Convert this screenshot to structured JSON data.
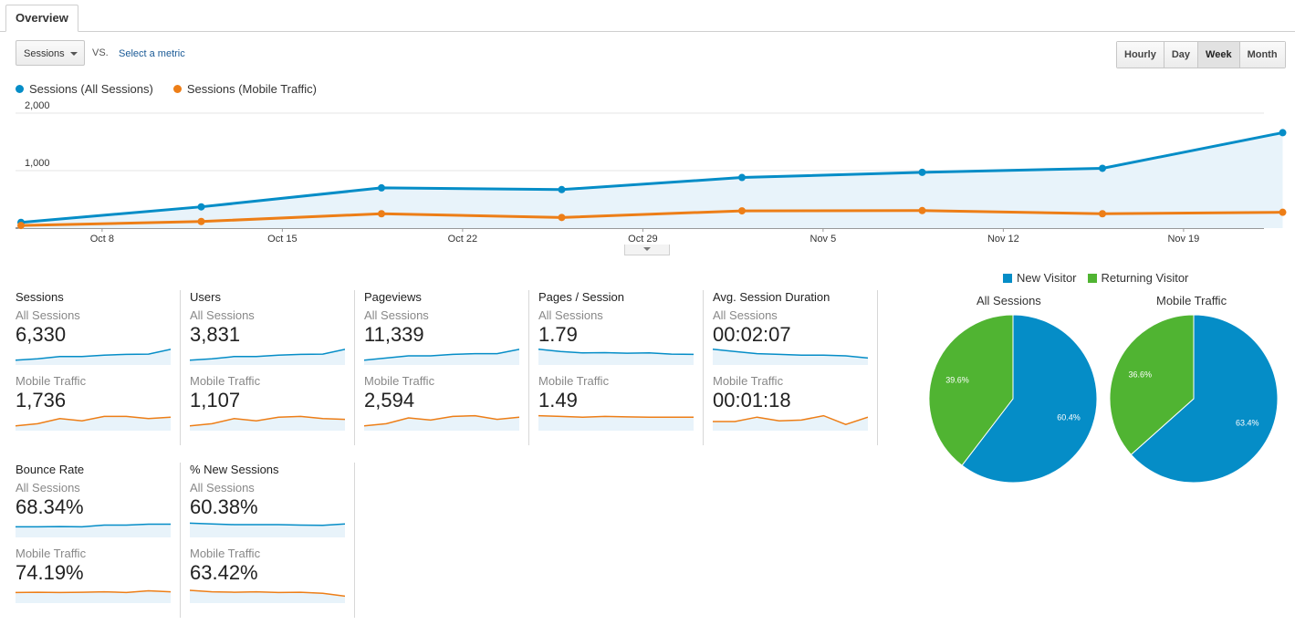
{
  "tabs": {
    "overview": "Overview"
  },
  "toolbar": {
    "metric_select": "Sessions",
    "vs": "VS.",
    "select_metric": "Select a metric",
    "granularity": [
      "Hourly",
      "Day",
      "Week",
      "Month"
    ],
    "active_granularity": "Week"
  },
  "colors": {
    "all_sessions": "#058dc7",
    "mobile_traffic": "#ed7e17",
    "new_visitor": "#058dc7",
    "returning_visitor": "#50b432"
  },
  "legend": {
    "series1": "Sessions (All Sessions)",
    "series2": "Sessions (Mobile Traffic)"
  },
  "chart_data": [
    {
      "type": "line",
      "x": [
        "Oct 4",
        "Oct 11",
        "Oct 18",
        "Oct 25",
        "Nov 1",
        "Nov 8",
        "Nov 15",
        "Nov 22"
      ],
      "x_tick_labels": [
        "Oct 8",
        "Oct 15",
        "Oct 22",
        "Oct 29",
        "Nov 5",
        "Nov 12",
        "Nov 19"
      ],
      "y_tick_labels": [
        "2,000",
        "1,000"
      ],
      "ylim": [
        0,
        2000
      ],
      "grid": true,
      "series": [
        {
          "name": "Sessions (All Sessions)",
          "values": [
            100,
            370,
            700,
            670,
            880,
            970,
            1040,
            1660
          ]
        },
        {
          "name": "Sessions (Mobile Traffic)",
          "values": [
            45,
            115,
            250,
            185,
            300,
            305,
            250,
            275
          ]
        }
      ]
    },
    {
      "type": "pie",
      "title": "All Sessions",
      "categories": [
        "New Visitor",
        "Returning Visitor"
      ],
      "values": [
        60.4,
        39.6
      ],
      "labels": [
        "60.4%",
        "39.6%"
      ]
    },
    {
      "type": "pie",
      "title": "Mobile Traffic",
      "categories": [
        "New Visitor",
        "Returning Visitor"
      ],
      "values": [
        63.4,
        36.6
      ],
      "labels": [
        "63.4%",
        "36.6%"
      ]
    }
  ],
  "pie_legend": {
    "new": "New Visitor",
    "returning": "Returning Visitor"
  },
  "metrics": [
    {
      "title": "Sessions",
      "seg1": "All Sessions",
      "val1": "6,330",
      "seg2": "Mobile Traffic",
      "val2": "1,736",
      "spark1": [
        0.2,
        0.3,
        0.45,
        0.45,
        0.55,
        0.6,
        0.62,
        0.95
      ],
      "spark2": [
        0.2,
        0.35,
        0.7,
        0.55,
        0.85,
        0.85,
        0.7,
        0.8
      ]
    },
    {
      "title": "Users",
      "seg1": "All Sessions",
      "val1": "3,831",
      "seg2": "Mobile Traffic",
      "val2": "1,107",
      "spark1": [
        0.2,
        0.3,
        0.45,
        0.45,
        0.55,
        0.6,
        0.62,
        0.95
      ],
      "spark2": [
        0.2,
        0.35,
        0.7,
        0.55,
        0.8,
        0.85,
        0.7,
        0.65
      ]
    },
    {
      "title": "Pageviews",
      "seg1": "All Sessions",
      "val1": "11,339",
      "seg2": "Mobile Traffic",
      "val2": "2,594",
      "spark1": [
        0.2,
        0.35,
        0.5,
        0.5,
        0.6,
        0.65,
        0.65,
        0.95
      ],
      "spark2": [
        0.2,
        0.35,
        0.75,
        0.6,
        0.85,
        0.9,
        0.65,
        0.8
      ]
    },
    {
      "title": "Pages / Session",
      "seg1": "All Sessions",
      "val1": "1.79",
      "seg2": "Mobile Traffic",
      "val2": "1.49",
      "spark1": [
        0.95,
        0.8,
        0.7,
        0.72,
        0.68,
        0.7,
        0.62,
        0.6
      ],
      "spark2": [
        0.9,
        0.85,
        0.8,
        0.85,
        0.82,
        0.8,
        0.8,
        0.8
      ]
    },
    {
      "title": "Avg. Session Duration",
      "seg1": "All Sessions",
      "val1": "00:02:07",
      "seg2": "Mobile Traffic",
      "val2": "00:01:18",
      "spark1": [
        0.95,
        0.8,
        0.65,
        0.6,
        0.55,
        0.55,
        0.5,
        0.35
      ],
      "spark2": [
        0.5,
        0.5,
        0.8,
        0.55,
        0.6,
        0.9,
        0.3,
        0.8
      ]
    },
    {
      "title": "Bounce Rate",
      "seg1": "All Sessions",
      "val1": "68.34%",
      "seg2": "Mobile Traffic",
      "val2": "74.19%",
      "spark1": [
        0.6,
        0.6,
        0.62,
        0.6,
        0.72,
        0.72,
        0.78,
        0.78
      ],
      "spark2": [
        0.6,
        0.62,
        0.6,
        0.62,
        0.65,
        0.6,
        0.72,
        0.65
      ]
    },
    {
      "title": "% New Sessions",
      "seg1": "All Sessions",
      "val1": "60.38%",
      "seg2": "Mobile Traffic",
      "val2": "63.42%",
      "spark1": [
        0.85,
        0.8,
        0.75,
        0.75,
        0.75,
        0.72,
        0.7,
        0.8
      ],
      "spark2": [
        0.75,
        0.65,
        0.62,
        0.65,
        0.6,
        0.62,
        0.55,
        0.35
      ]
    }
  ]
}
